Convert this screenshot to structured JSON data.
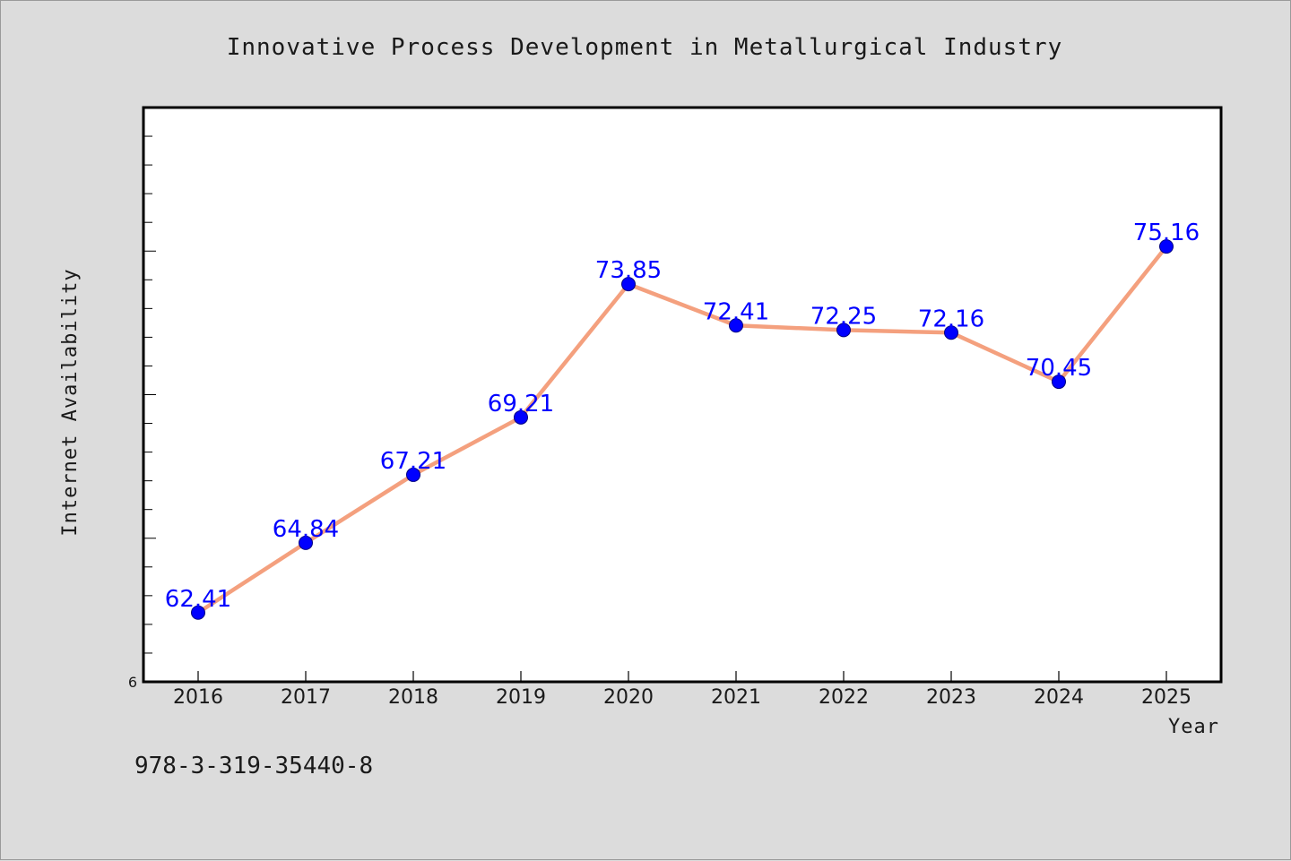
{
  "chart_data": {
    "type": "line",
    "title": "Innovative Process Development in Metallurgical Industry",
    "xlabel": "Year",
    "ylabel": "Internet Availability",
    "categories": [
      "2016",
      "2017",
      "2018",
      "2019",
      "2020",
      "2021",
      "2022",
      "2023",
      "2024",
      "2025"
    ],
    "series": [
      {
        "values": [
          62.41,
          64.84,
          67.21,
          69.21,
          73.85,
          72.41,
          72.25,
          72.16,
          70.45,
          75.16
        ],
        "data_labels": [
          "62.41",
          "64.84",
          "67.21",
          "69.21",
          "73.85",
          "72.41",
          "72.25",
          "72.16",
          "70.45",
          "75.16"
        ],
        "line_color": "#f4a07e",
        "marker_color": "#0000ff"
      }
    ],
    "ylim": [
      60,
      80
    ],
    "ytick_label": "6",
    "grid": false,
    "legend": "none"
  },
  "footer": {
    "isbn": "978-3-319-35440-8"
  },
  "colors": {
    "background": "#dcdcdc",
    "plot_background": "#ffffff",
    "line": "#f4a07e",
    "marker": "#0000ff",
    "data_label": "#0000ff"
  }
}
